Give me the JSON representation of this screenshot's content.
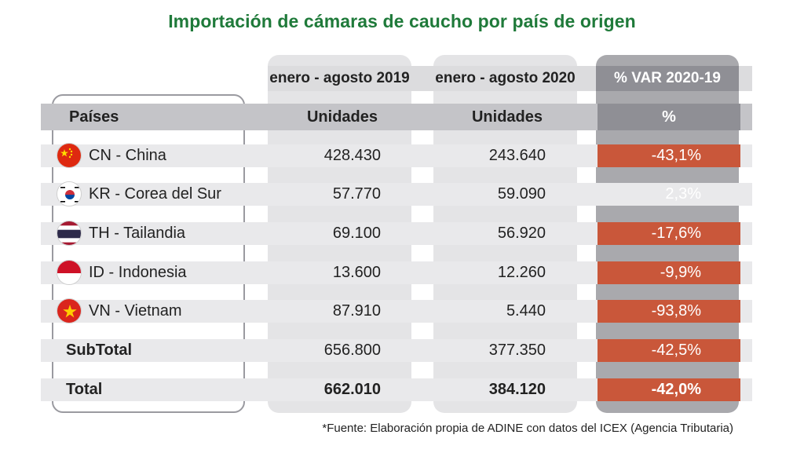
{
  "title": "Importación de cámaras de caucho por país de origen",
  "columns": {
    "period_2019": "enero - agosto 2019",
    "period_2020": "enero - agosto 2020",
    "period_var": "% VAR 2020-19",
    "countries_header": "Países",
    "units_2019": "Unidades",
    "units_2020": "Unidades",
    "pct_header": "%"
  },
  "rows": [
    {
      "label": "CN - China",
      "flag": "china-flag-icon",
      "v2019": "428.430",
      "v2020": "243.640",
      "var": "-43,1%",
      "highlight": true
    },
    {
      "label": "KR - Corea del Sur",
      "flag": "south-korea-flag-icon",
      "v2019": "57.770",
      "v2020": "59.090",
      "var": "2,3%",
      "highlight": false
    },
    {
      "label": "TH - Tailandia",
      "flag": "thailand-flag-icon",
      "v2019": "69.100",
      "v2020": "56.920",
      "var": "-17,6%",
      "highlight": true
    },
    {
      "label": "ID - Indonesia",
      "flag": "indonesia-flag-icon",
      "v2019": "13.600",
      "v2020": "12.260",
      "var": "-9,9%",
      "highlight": true
    },
    {
      "label": "VN - Vietnam",
      "flag": "vietnam-flag-icon",
      "v2019": "87.910",
      "v2020": "5.440",
      "var": "-93,8%",
      "highlight": true
    }
  ],
  "subtotal": {
    "label": "SubTotal",
    "v2019": "656.800",
    "v2020": "377.350",
    "var": "-42,5%"
  },
  "total": {
    "label": "Total",
    "v2019": "662.010",
    "v2020": "384.120",
    "var": "-42,0%"
  },
  "footnote": "*Fuente: Elaboración propia de ADINE con datos del ICEX (Agencia Tributaria)",
  "colors": {
    "title": "#1f7a3a",
    "negative_highlight": "#c9573a",
    "var_header": "#8f8f95"
  },
  "chart_data": {
    "type": "table",
    "title": "Importación de cámaras de caucho por país de origen",
    "columns": [
      "Países",
      "enero - agosto 2019 (Unidades)",
      "enero - agosto 2020 (Unidades)",
      "% VAR 2020-19 (%)"
    ],
    "rows": [
      [
        "CN - China",
        428430,
        243640,
        -43.1
      ],
      [
        "KR - Corea del Sur",
        57770,
        59090,
        2.3
      ],
      [
        "TH - Tailandia",
        69100,
        56920,
        -17.6
      ],
      [
        "ID - Indonesia",
        13600,
        12260,
        -9.9
      ],
      [
        "VN - Vietnam",
        87910,
        5440,
        -93.8
      ],
      [
        "SubTotal",
        656800,
        377350,
        -42.5
      ],
      [
        "Total",
        662010,
        384120,
        -42.0
      ]
    ]
  }
}
